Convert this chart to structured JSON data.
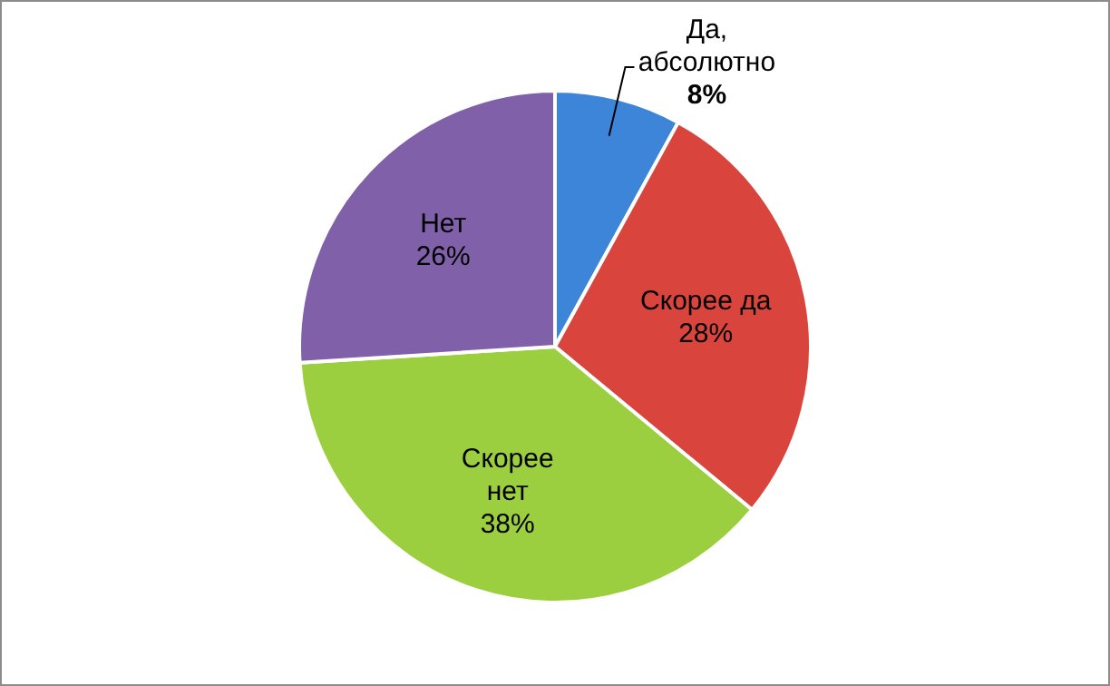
{
  "chart_data": {
    "type": "pie",
    "categories": [
      "Да, абсолютно",
      "Скорее да",
      "Скорее нет",
      "Нет"
    ],
    "values": [
      8,
      28,
      38,
      26
    ],
    "colors": [
      "#3d85d8",
      "#d9443c",
      "#9ccf3f",
      "#8061a9"
    ],
    "value_labels": [
      "8%",
      "28%",
      "38%",
      "26%"
    ],
    "legend": false
  }
}
